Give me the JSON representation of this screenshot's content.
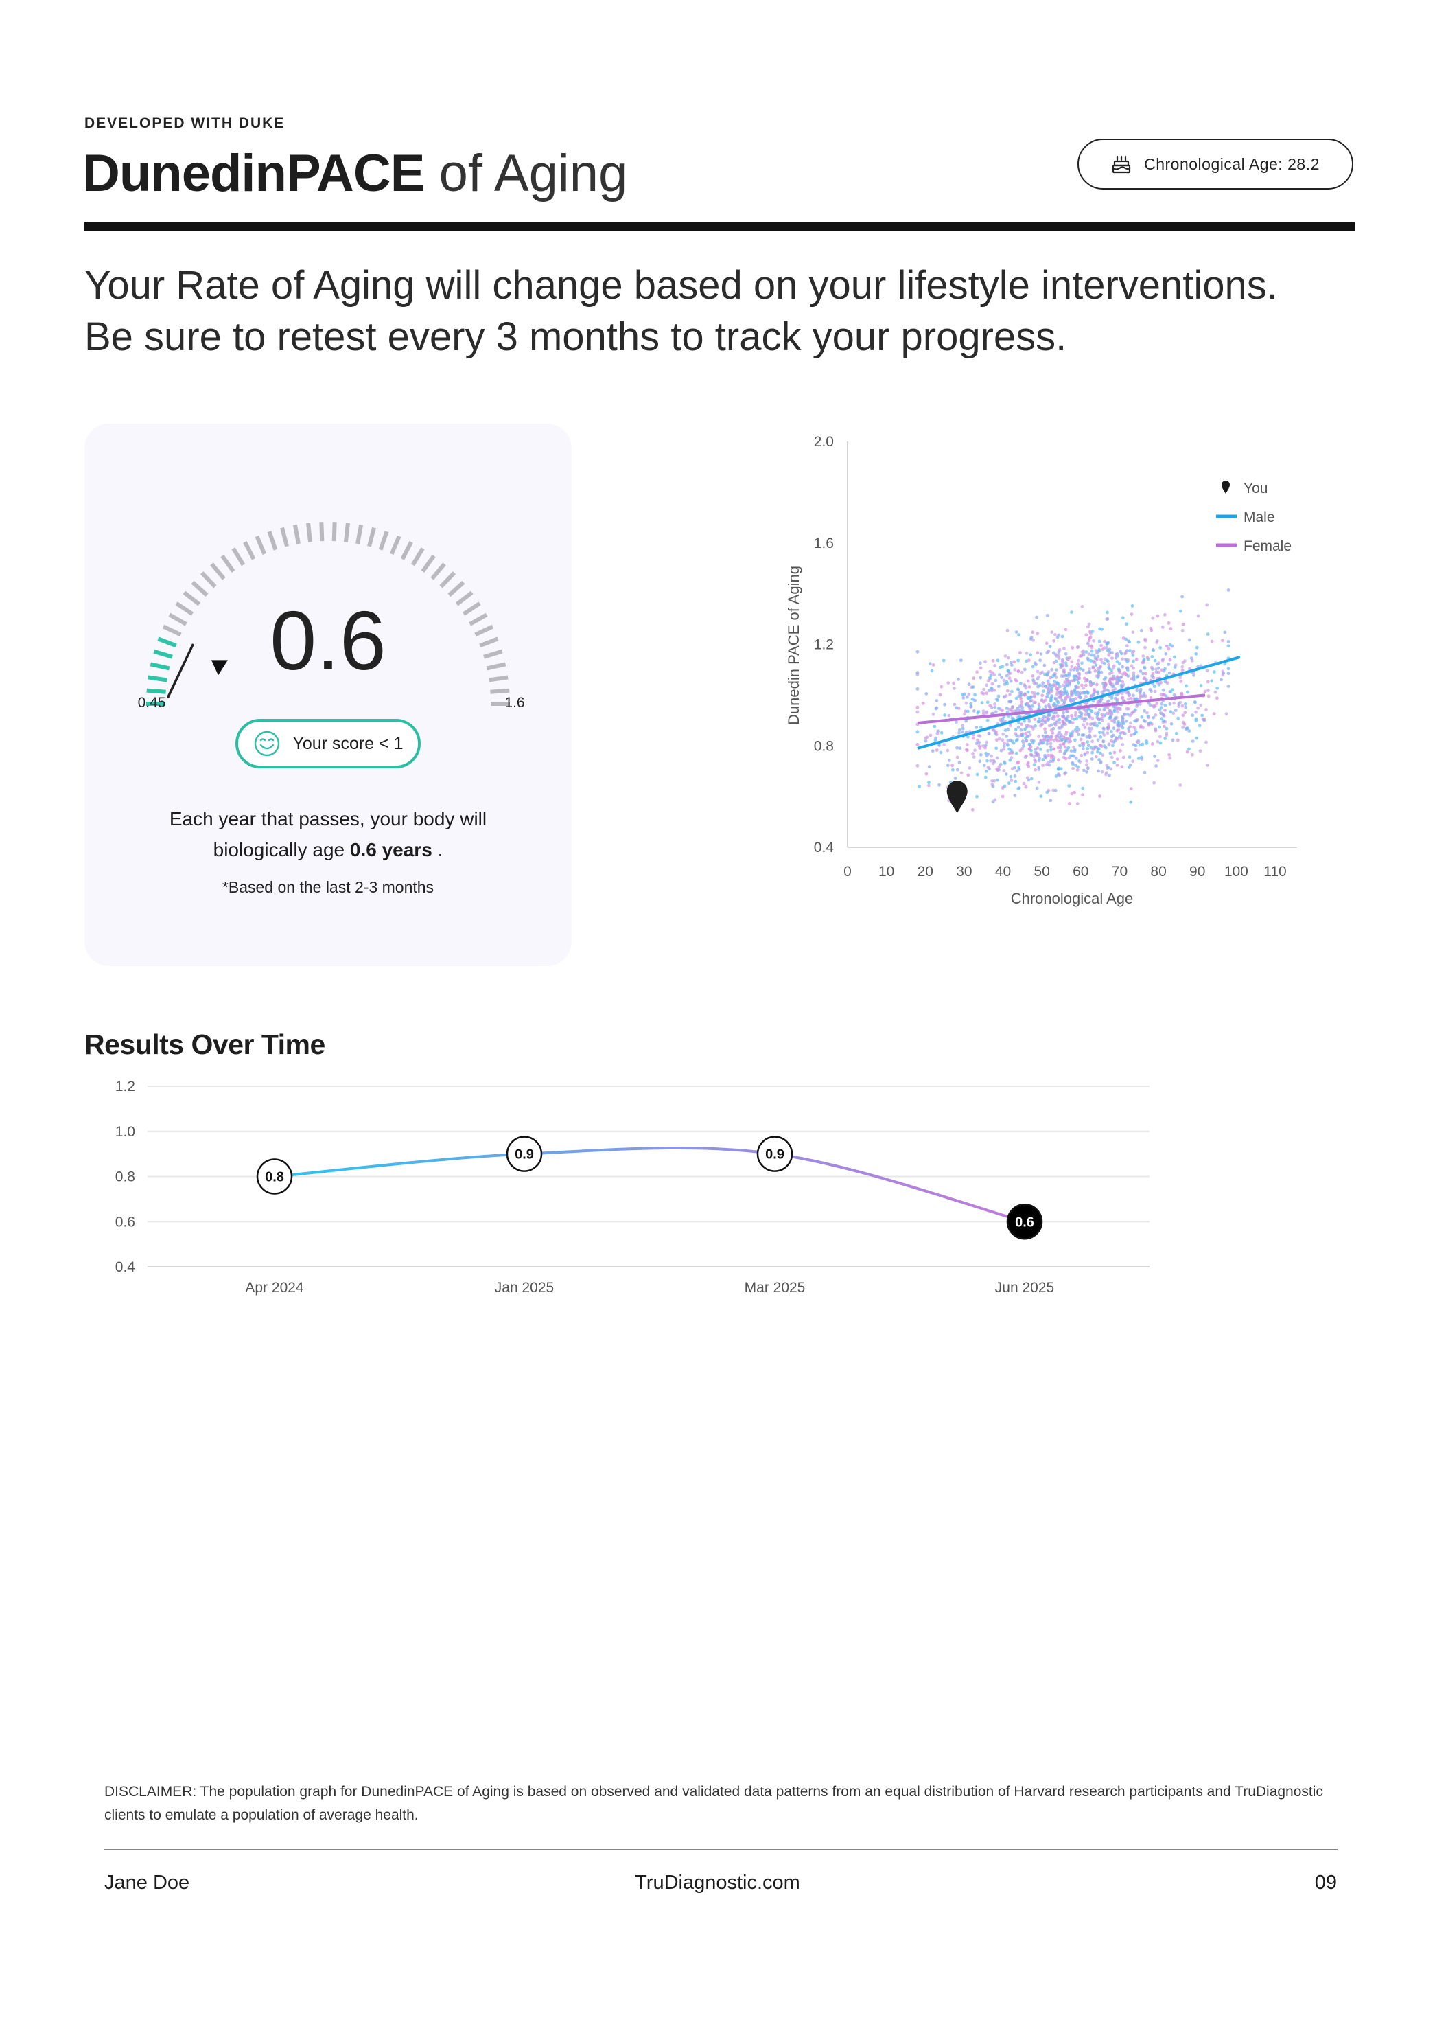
{
  "header": {
    "kicker": "DEVELOPED WITH DUKE",
    "title_bold": "DunedinPACE",
    "title_light": "of Aging",
    "chrono_label": "Chronological Age: 28.2",
    "chrono_icon": "birthday-cake-icon"
  },
  "intro": {
    "line1": "Your Rate of Aging will change based on your lifestyle interventions.",
    "line2": "Be sure to retest every 3 months to track your progress."
  },
  "gauge": {
    "value": "0.6",
    "score": 0.6,
    "min_label": "0.45",
    "max_label": "1.6",
    "min": 0.45,
    "max": 1.6,
    "pill_label": "Your score < 1",
    "pill_icon": "smile-icon",
    "desc_line1": "Each year that passes, your body will",
    "desc_line2_pre": "biologically age",
    "desc_line2_bold": "0.6 years",
    "desc_line2_post": ".",
    "note": "*Based on the last 2-3 months",
    "colors": {
      "active": "#2dc4a8",
      "inactive": "#b9b9bf",
      "pill_border": "#2dbfa3"
    }
  },
  "results_title": "Results Over Time",
  "footer": {
    "disclaimer": "DISCLAIMER: The population graph for DunedinPACE of Aging is based on observed and validated data patterns from an equal distribution of Harvard research participants and TruDiagnostic clients to emulate a population of average health.",
    "name": "Jane Doe",
    "site": "TruDiagnostic.com",
    "page": "09"
  },
  "chart_data": [
    {
      "type": "scatter",
      "xlabel": "Chronological Age",
      "ylabel": "Dunedin PACE of Aging",
      "xlim": [
        0,
        110
      ],
      "ylim": [
        0.4,
        2.0
      ],
      "xticks": [
        0,
        10,
        20,
        30,
        40,
        50,
        60,
        70,
        80,
        90,
        100,
        110
      ],
      "yticks": [
        "0.4",
        "0.8",
        "1.2",
        "1.6",
        "2.0"
      ],
      "legend_position": "top-right",
      "legend": [
        {
          "name": "You",
          "color": "#1a1a1a",
          "marker": "pin"
        },
        {
          "name": "Male",
          "color": "#1da5ea",
          "marker": "line"
        },
        {
          "name": "Female",
          "color": "#b86fd6",
          "marker": "line"
        }
      ],
      "you": {
        "x": 28.2,
        "y": 0.6
      },
      "series": [
        {
          "name": "Male",
          "x": [
            18,
            101
          ],
          "y": [
            0.79,
            1.15
          ]
        },
        {
          "name": "Female",
          "x": [
            18,
            92
          ],
          "y": [
            0.89,
            1.0
          ]
        }
      ],
      "population": {
        "description_note": "population cloud",
        "x_range": [
          18,
          98
        ],
        "center_y": 0.95,
        "colors": [
          "#5fbdf2",
          "#d98fe0",
          "#8fa8ee",
          "#c7a2ea"
        ],
        "point_count": 1800
      },
      "grid": false
    },
    {
      "type": "line",
      "categories": [
        "Apr 2024",
        "Jan 2025",
        "Mar 2025",
        "Jun 2025"
      ],
      "values": [
        0.8,
        0.9,
        0.9,
        0.6
      ],
      "labels": [
        "0.8",
        "0.9",
        "0.9",
        "0.6"
      ],
      "ylim": [
        0.4,
        1.2
      ],
      "yticks": [
        "1.2",
        "1.0",
        "0.8",
        "0.6",
        "0.4"
      ],
      "grid": true,
      "gradient": [
        "#29c4ee",
        "#8e94e6",
        "#c07ad9"
      ],
      "highlight_last": true
    }
  ]
}
